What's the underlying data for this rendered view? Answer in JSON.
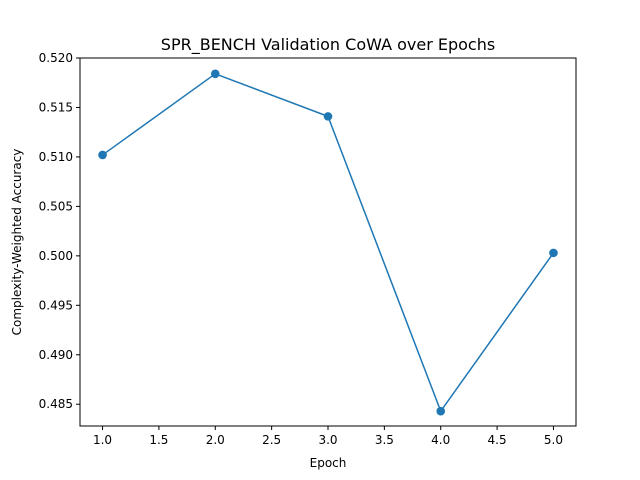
{
  "chart_data": {
    "type": "line",
    "title": "SPR_BENCH Validation CoWA over Epochs",
    "xlabel": "Epoch",
    "ylabel": "Complexity-Weighted Accuracy",
    "x": [
      1,
      2,
      3,
      4,
      5
    ],
    "series": [
      {
        "values": [
          0.5102,
          0.5184,
          0.5141,
          0.4843,
          0.5003
        ]
      }
    ],
    "xlim": [
      0.8,
      5.2
    ],
    "ylim": [
      0.4828,
      0.52
    ],
    "xticks": [
      "1.0",
      "1.5",
      "2.0",
      "2.5",
      "3.0",
      "3.5",
      "4.0",
      "4.5",
      "5.0"
    ],
    "yticks": [
      "0.485",
      "0.490",
      "0.495",
      "0.500",
      "0.505",
      "0.510",
      "0.515",
      "0.520"
    ],
    "marker": "circle",
    "line_color": "#1f77b4",
    "grid": false,
    "legend": "none"
  }
}
